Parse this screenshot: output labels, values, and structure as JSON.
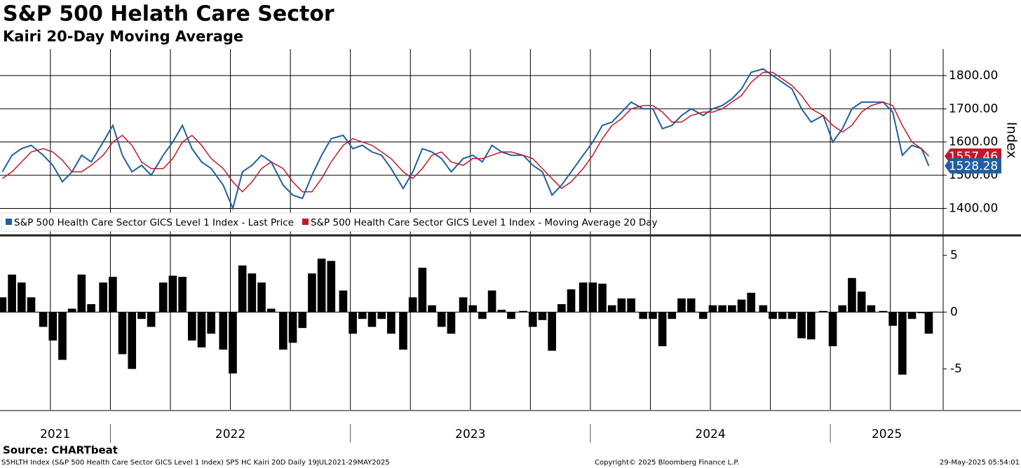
{
  "title": "S&P 500 Helath Care Sector",
  "subtitle": "Kairi 20-Day Moving Average",
  "source": "Source: CHARTbeat",
  "footer": {
    "left": "S5HLTH Index (S&P 500 Health Care Sector GICS Level 1 Index) SP5 HC Kairi 20D  Daily 19JUL2021-29MAY2025",
    "center": "Copyright© 2025 Bloomberg Finance L.P.",
    "right": "29-May-2025 05:54:01"
  },
  "chart_data": [
    {
      "type": "line",
      "y_label": "Index",
      "x": [
        2021.55,
        2021.59,
        2021.63,
        2021.67,
        2021.72,
        2021.76,
        2021.8,
        2021.84,
        2021.88,
        2021.92,
        2021.97,
        2022.01,
        2022.05,
        2022.09,
        2022.13,
        2022.17,
        2022.22,
        2022.26,
        2022.3,
        2022.34,
        2022.38,
        2022.42,
        2022.47,
        2022.51,
        2022.55,
        2022.59,
        2022.63,
        2022.67,
        2022.72,
        2022.76,
        2022.8,
        2022.84,
        2022.88,
        2022.92,
        2022.97,
        2023.01,
        2023.05,
        2023.09,
        2023.13,
        2023.17,
        2023.22,
        2023.26,
        2023.3,
        2023.34,
        2023.38,
        2023.42,
        2023.47,
        2023.51,
        2023.55,
        2023.59,
        2023.63,
        2023.67,
        2023.72,
        2023.76,
        2023.8,
        2023.84,
        2023.88,
        2023.92,
        2023.97,
        2024.01,
        2024.05,
        2024.09,
        2024.13,
        2024.17,
        2024.22,
        2024.26,
        2024.3,
        2024.34,
        2024.38,
        2024.42,
        2024.47,
        2024.51,
        2024.55,
        2024.59,
        2024.63,
        2024.67,
        2024.72,
        2024.76,
        2024.8,
        2024.84,
        2024.88,
        2024.92,
        2024.97,
        2025.01,
        2025.05,
        2025.09,
        2025.13,
        2025.17,
        2025.22,
        2025.26,
        2025.3,
        2025.34,
        2025.38,
        2025.41
      ],
      "xlim": [
        2021.54,
        2025.47
      ],
      "xticks": [
        {
          "value": 2021,
          "label": "2021"
        },
        {
          "value": 2022,
          "label": "2022"
        },
        {
          "value": 2023,
          "label": "2023"
        },
        {
          "value": 2024,
          "label": "2024"
        },
        {
          "value": 2025,
          "label": "2025"
        }
      ],
      "ylim": [
        1325,
        1880
      ],
      "yticks": [
        {
          "value": 1400,
          "label": "1400.00"
        },
        {
          "value": 1500,
          "label": "1500.00"
        },
        {
          "value": 1600,
          "label": "1600.00"
        },
        {
          "value": 1700,
          "label": "1700.00"
        },
        {
          "value": 1800,
          "label": "1800.00"
        }
      ],
      "grid": true,
      "legend": "bottom-left",
      "series": [
        {
          "name": "S&P 500 Health Care Sector GICS Level 1 Index - Last Price",
          "color": "#1f5fa0",
          "values": [
            1510,
            1560,
            1580,
            1590,
            1560,
            1530,
            1480,
            1510,
            1560,
            1540,
            1600,
            1650,
            1560,
            1510,
            1530,
            1500,
            1560,
            1600,
            1650,
            1580,
            1540,
            1520,
            1470,
            1400,
            1510,
            1530,
            1560,
            1540,
            1470,
            1440,
            1430,
            1500,
            1560,
            1610,
            1620,
            1580,
            1590,
            1570,
            1560,
            1520,
            1460,
            1510,
            1580,
            1570,
            1550,
            1510,
            1550,
            1560,
            1540,
            1590,
            1570,
            1560,
            1560,
            1530,
            1510,
            1440,
            1470,
            1510,
            1560,
            1600,
            1650,
            1660,
            1690,
            1720,
            1700,
            1700,
            1640,
            1650,
            1680,
            1700,
            1680,
            1700,
            1710,
            1730,
            1760,
            1810,
            1820,
            1800,
            1780,
            1760,
            1700,
            1660,
            1680,
            1600,
            1640,
            1700,
            1720,
            1720,
            1720,
            1690,
            1560,
            1590,
            1580,
            1528.28
          ]
        },
        {
          "name": "S&P 500 Health Care Sector GICS Level 1 Index - Moving Average 20 Day",
          "color": "#c0192b",
          "values": [
            1490,
            1510,
            1540,
            1570,
            1580,
            1570,
            1545,
            1510,
            1510,
            1530,
            1560,
            1600,
            1620,
            1590,
            1540,
            1520,
            1520,
            1550,
            1600,
            1620,
            1590,
            1550,
            1520,
            1480,
            1450,
            1480,
            1520,
            1540,
            1520,
            1480,
            1450,
            1450,
            1490,
            1540,
            1590,
            1610,
            1600,
            1590,
            1570,
            1550,
            1510,
            1490,
            1520,
            1560,
            1570,
            1540,
            1530,
            1550,
            1550,
            1560,
            1570,
            1570,
            1560,
            1550,
            1520,
            1490,
            1460,
            1480,
            1520,
            1560,
            1610,
            1650,
            1670,
            1700,
            1710,
            1710,
            1690,
            1660,
            1660,
            1680,
            1690,
            1690,
            1700,
            1720,
            1740,
            1780,
            1810,
            1810,
            1790,
            1770,
            1740,
            1700,
            1680,
            1650,
            1630,
            1650,
            1690,
            1710,
            1720,
            1710,
            1650,
            1600,
            1580,
            1557.46
          ]
        }
      ]
    },
    {
      "type": "bar",
      "color": "#000000",
      "x": [
        2021.55,
        2021.59,
        2021.63,
        2021.67,
        2021.72,
        2021.76,
        2021.8,
        2021.84,
        2021.88,
        2021.92,
        2021.97,
        2022.01,
        2022.05,
        2022.09,
        2022.13,
        2022.17,
        2022.22,
        2022.26,
        2022.3,
        2022.34,
        2022.38,
        2022.42,
        2022.47,
        2022.51,
        2022.55,
        2022.59,
        2022.63,
        2022.67,
        2022.72,
        2022.76,
        2022.8,
        2022.84,
        2022.88,
        2022.92,
        2022.97,
        2023.01,
        2023.05,
        2023.09,
        2023.13,
        2023.17,
        2023.22,
        2023.26,
        2023.3,
        2023.34,
        2023.38,
        2023.42,
        2023.47,
        2023.51,
        2023.55,
        2023.59,
        2023.63,
        2023.67,
        2023.72,
        2023.76,
        2023.8,
        2023.84,
        2023.88,
        2023.92,
        2023.97,
        2024.01,
        2024.05,
        2024.09,
        2024.13,
        2024.17,
        2024.22,
        2024.26,
        2024.3,
        2024.34,
        2024.38,
        2024.42,
        2024.47,
        2024.51,
        2024.55,
        2024.59,
        2024.63,
        2024.67,
        2024.72,
        2024.76,
        2024.8,
        2024.84,
        2024.88,
        2024.92,
        2024.97,
        2025.01,
        2025.05,
        2025.09,
        2025.13,
        2025.17,
        2025.22,
        2025.26,
        2025.3,
        2025.34,
        2025.38,
        2025.41
      ],
      "xlim": [
        2021.54,
        2025.47
      ],
      "ylim": [
        -8.6,
        6.5
      ],
      "yticks": [
        -5,
        0,
        5
      ],
      "values": [
        1.3,
        3.3,
        2.6,
        1.3,
        -1.3,
        -2.5,
        -4.2,
        0.3,
        3.3,
        0.7,
        2.6,
        3.1,
        -3.7,
        -5.0,
        -0.6,
        -1.3,
        2.6,
        3.2,
        3.1,
        -2.5,
        -3.1,
        -1.9,
        -3.3,
        -5.4,
        4.1,
        3.4,
        2.6,
        0.3,
        -3.3,
        -2.7,
        -1.4,
        3.4,
        4.7,
        4.5,
        1.9,
        -1.9,
        -0.6,
        -1.3,
        -0.6,
        -1.9,
        -3.3,
        1.3,
        3.9,
        0.6,
        -1.3,
        -1.9,
        1.3,
        0.6,
        -0.6,
        1.9,
        0.2,
        -0.6,
        0.1,
        -1.3,
        -0.7,
        -3.4,
        0.7,
        2.0,
        2.6,
        2.6,
        2.5,
        0.6,
        1.2,
        1.2,
        -0.6,
        -0.6,
        -3.0,
        -0.6,
        1.2,
        1.2,
        -0.6,
        0.6,
        0.6,
        0.6,
        1.1,
        1.7,
        0.6,
        -0.6,
        -0.6,
        -0.6,
        -2.3,
        -2.4,
        0.1,
        -3.0,
        0.6,
        3.0,
        1.8,
        0.6,
        0.1,
        -1.2,
        -5.5,
        -0.6,
        -0.1,
        -1.9
      ]
    }
  ]
}
